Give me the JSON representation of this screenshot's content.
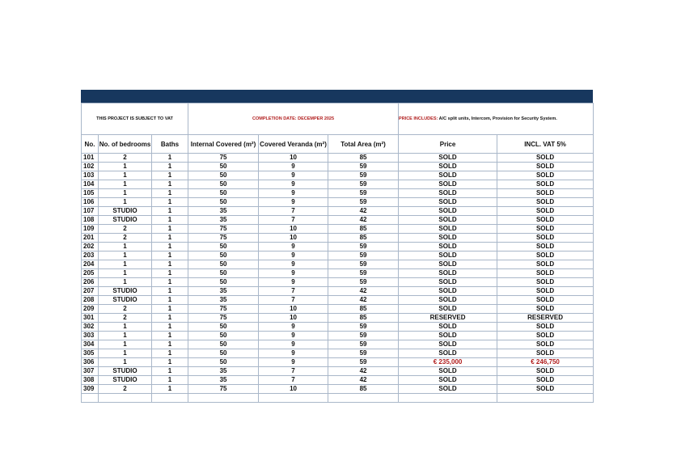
{
  "info": {
    "vat_note": "THIS PROJECT IS SUBJECT TO VAT",
    "completion": "COMPLETION DATE: DECEMPER 2025",
    "price_includes_label": "PRICE INCLUDES:",
    "price_includes_text": " A/C split units, Intercom, Provision for Security System."
  },
  "headers": {
    "no": "No.",
    "bedrooms": "No. of bedrooms",
    "baths": "Baths",
    "internal": "Internal Covered (m²)",
    "veranda": "Covered Veranda (m²)",
    "total": "Total Area (m²)",
    "price": "Price",
    "vat": "INCL. VAT 5%"
  },
  "colors": {
    "header_bar": "#17375e",
    "price_highlight": "#b01c1c"
  },
  "rows": [
    [
      "101",
      "2",
      "1",
      "75",
      "10",
      "85",
      "SOLD",
      "SOLD"
    ],
    [
      "102",
      "1",
      "1",
      "50",
      "9",
      "59",
      "SOLD",
      "SOLD"
    ],
    [
      "103",
      "1",
      "1",
      "50",
      "9",
      "59",
      "SOLD",
      "SOLD"
    ],
    [
      "104",
      "1",
      "1",
      "50",
      "9",
      "59",
      "SOLD",
      "SOLD"
    ],
    [
      "105",
      "1",
      "1",
      "50",
      "9",
      "59",
      "SOLD",
      "SOLD"
    ],
    [
      "106",
      "1",
      "1",
      "50",
      "9",
      "59",
      "SOLD",
      "SOLD"
    ],
    [
      "107",
      "STUDIO",
      "1",
      "35",
      "7",
      "42",
      "SOLD",
      "SOLD"
    ],
    [
      "108",
      "STUDIO",
      "1",
      "35",
      "7",
      "42",
      "SOLD",
      "SOLD"
    ],
    [
      "109",
      "2",
      "1",
      "75",
      "10",
      "85",
      "SOLD",
      "SOLD"
    ],
    [
      "201",
      "2",
      "1",
      "75",
      "10",
      "85",
      "SOLD",
      "SOLD"
    ],
    [
      "202",
      "1",
      "1",
      "50",
      "9",
      "59",
      "SOLD",
      "SOLD"
    ],
    [
      "203",
      "1",
      "1",
      "50",
      "9",
      "59",
      "SOLD",
      "SOLD"
    ],
    [
      "204",
      "1",
      "1",
      "50",
      "9",
      "59",
      "SOLD",
      "SOLD"
    ],
    [
      "205",
      "1",
      "1",
      "50",
      "9",
      "59",
      "SOLD",
      "SOLD"
    ],
    [
      "206",
      "1",
      "1",
      "50",
      "9",
      "59",
      "SOLD",
      "SOLD"
    ],
    [
      "207",
      "STUDIO",
      "1",
      "35",
      "7",
      "42",
      "SOLD",
      "SOLD"
    ],
    [
      "208",
      "STUDIO",
      "1",
      "35",
      "7",
      "42",
      "SOLD",
      "SOLD"
    ],
    [
      "209",
      "2",
      "1",
      "75",
      "10",
      "85",
      "SOLD",
      "SOLD"
    ],
    [
      "301",
      "2",
      "1",
      "75",
      "10",
      "85",
      "RESERVED",
      "RESERVED"
    ],
    [
      "302",
      "1",
      "1",
      "50",
      "9",
      "59",
      "SOLD",
      "SOLD"
    ],
    [
      "303",
      "1",
      "1",
      "50",
      "9",
      "59",
      "SOLD",
      "SOLD"
    ],
    [
      "304",
      "1",
      "1",
      "50",
      "9",
      "59",
      "SOLD",
      "SOLD"
    ],
    [
      "305",
      "1",
      "1",
      "50",
      "9",
      "59",
      "SOLD",
      "SOLD"
    ],
    [
      "306",
      "1",
      "1",
      "50",
      "9",
      "59",
      "€ 235,000",
      "€ 246,750"
    ],
    [
      "307",
      "STUDIO",
      "1",
      "35",
      "7",
      "42",
      "SOLD",
      "SOLD"
    ],
    [
      "308",
      "STUDIO",
      "1",
      "35",
      "7",
      "42",
      "SOLD",
      "SOLD"
    ],
    [
      "309",
      "2",
      "1",
      "75",
      "10",
      "85",
      "SOLD",
      "SOLD"
    ]
  ]
}
